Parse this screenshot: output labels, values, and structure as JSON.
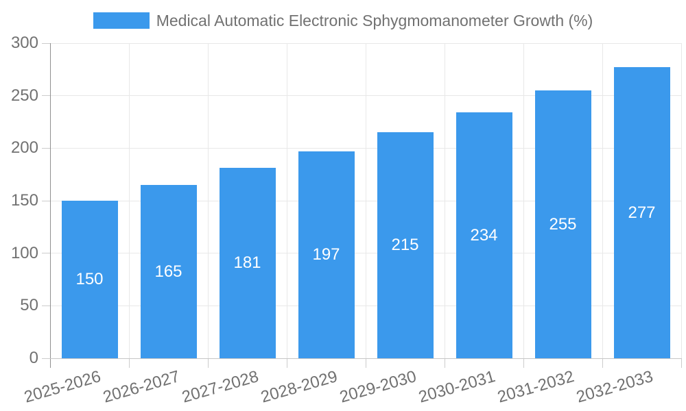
{
  "chart_data": {
    "type": "bar",
    "title": "Medical Automatic Electronic Sphygmomanometer Growth (%)",
    "legend": [
      "Medical Automatic Electronic Sphygmomanometer Growth (%)"
    ],
    "legend_position": "top",
    "categories": [
      "2025-2026",
      "2026-2027",
      "2027-2028",
      "2028-2029",
      "2029-2030",
      "2030-2031",
      "2031-2032",
      "2032-2033"
    ],
    "values": [
      150,
      165,
      181,
      197,
      215,
      234,
      255,
      277
    ],
    "bar_labels": [
      "150",
      "165",
      "181",
      "197",
      "215",
      "234",
      "255",
      "277"
    ],
    "xlabel": "",
    "ylabel": "",
    "ylim": [
      0,
      300
    ],
    "ytick_step": 50,
    "ytick_labels": [
      "0",
      "50",
      "100",
      "150",
      "200",
      "250",
      "300"
    ],
    "grid": true,
    "x_label_rotation_deg": -16
  },
  "colors": {
    "bar": "#3b99ec",
    "grid": "#e8e8e8",
    "axis_left": "#8f8f8f",
    "axis_bottom": "#c6c6c6",
    "tick": "#cccccc",
    "text": "#717171",
    "value_label": "#ffffff",
    "background": "#ffffff"
  }
}
